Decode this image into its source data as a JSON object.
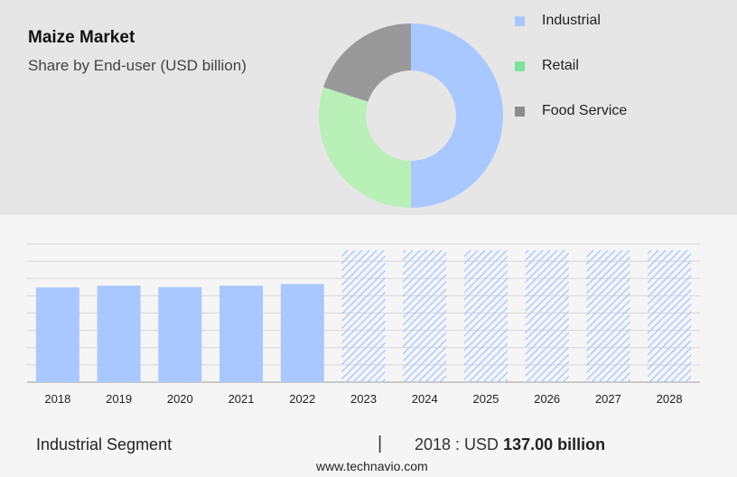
{
  "header": {
    "title": "Maize Market",
    "subtitle": "Share by End-user (USD billion)"
  },
  "chart_data": [
    {
      "type": "pie",
      "variant": "donut",
      "categories": [
        "Industrial",
        "Retail",
        "Food Service"
      ],
      "values": [
        50,
        30,
        20
      ],
      "colors": [
        "#a9c8ff",
        "#b8f0b8",
        "#999999"
      ],
      "legend_swatch_colors": [
        "#a9c8ff",
        "#7ee39a",
        "#8c8c8c"
      ],
      "legend_position": "right"
    },
    {
      "type": "bar",
      "categories": [
        "2018",
        "2019",
        "2020",
        "2021",
        "2022",
        "2023",
        "2024",
        "2025",
        "2026",
        "2027",
        "2028"
      ],
      "values": [
        137.0,
        139.5,
        137.5,
        139.5,
        142.0,
        null,
        null,
        null,
        null,
        null,
        null
      ],
      "forecast_categories": [
        "2023",
        "2024",
        "2025",
        "2026",
        "2027",
        "2028"
      ],
      "forecast_style": "hatched",
      "ylim": [
        0,
        200
      ],
      "grid": true,
      "bar_color": "#a9c8ff",
      "hatch_color": "#a9c8ff"
    }
  ],
  "footer": {
    "segment_label": "Industrial Segment",
    "divider": "|",
    "value_prefix": "2018 : USD ",
    "value_bold": "137.00 billion"
  },
  "source": {
    "text": "www.technavio.com"
  }
}
